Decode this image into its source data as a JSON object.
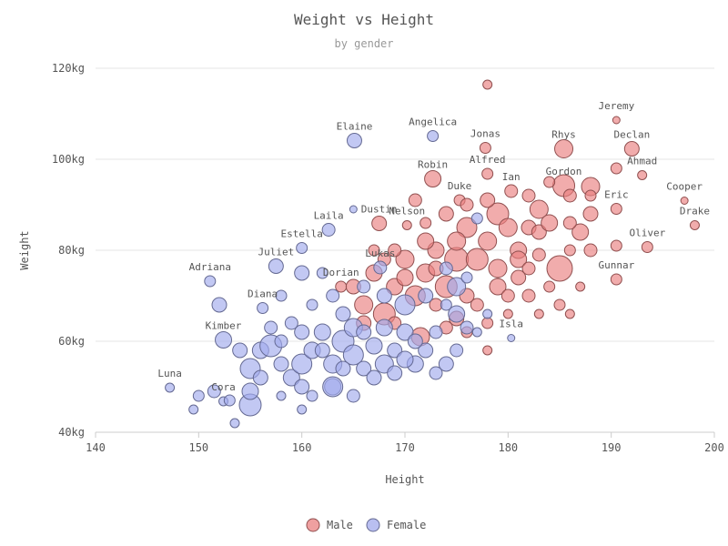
{
  "chart_data": {
    "type": "scatter",
    "title": "Weight vs Height",
    "subtitle": "by gender",
    "xlabel": "Height",
    "ylabel": "Weight",
    "xlim": [
      140,
      200
    ],
    "ylim": [
      40,
      120
    ],
    "x_ticks": [
      "140",
      "150",
      "160",
      "170",
      "180",
      "190",
      "200"
    ],
    "y_ticks": [
      "40kg",
      "60kg",
      "80kg",
      "100kg",
      "120kg"
    ],
    "grid": "horizontal",
    "legend_position": "bottom-center",
    "series": [
      {
        "name": "Male",
        "color": "#e98080",
        "labeled_points": [
          {
            "name": "Jeremy",
            "x": 190.5,
            "y": 108.6
          },
          {
            "name": "Declan",
            "x": 192.0,
            "y": 102.3
          },
          {
            "name": "Ahmad",
            "x": 193.0,
            "y": 96.5
          },
          {
            "name": "Rhys",
            "x": 185.4,
            "y": 102.3
          },
          {
            "name": "Jonas",
            "x": 177.8,
            "y": 102.5
          },
          {
            "name": "Gordon",
            "x": 185.4,
            "y": 94.2
          },
          {
            "name": "Alfred",
            "x": 178.0,
            "y": 96.8
          },
          {
            "name": "Robin",
            "x": 172.7,
            "y": 95.7
          },
          {
            "name": "Ian",
            "x": 180.3,
            "y": 93.0
          },
          {
            "name": "Duke",
            "x": 175.3,
            "y": 91.0
          },
          {
            "name": "Eric",
            "x": 190.5,
            "y": 89.1
          },
          {
            "name": "Cooper",
            "x": 197.1,
            "y": 90.9
          },
          {
            "name": "Drake",
            "x": 198.1,
            "y": 85.5
          },
          {
            "name": "Oliver",
            "x": 193.5,
            "y": 80.7
          },
          {
            "name": "Nelson",
            "x": 170.2,
            "y": 85.5
          },
          {
            "name": "Dustin",
            "x": 167.5,
            "y": 85.9
          },
          {
            "name": "Gunnar",
            "x": 190.5,
            "y": 73.6
          },
          {
            "name": "Dorian",
            "x": 163.8,
            "y": 72.0
          }
        ],
        "points": [
          {
            "x": 178.0,
            "y": 116.4,
            "r": 5
          },
          {
            "x": 190.5,
            "y": 108.6,
            "r": 4
          },
          {
            "x": 192.0,
            "y": 102.3,
            "r": 8
          },
          {
            "x": 193.0,
            "y": 96.5,
            "r": 5
          },
          {
            "x": 185.4,
            "y": 102.3,
            "r": 10
          },
          {
            "x": 177.8,
            "y": 102.5,
            "r": 6
          },
          {
            "x": 185.4,
            "y": 94.2,
            "r": 12
          },
          {
            "x": 178.0,
            "y": 96.8,
            "r": 6
          },
          {
            "x": 172.7,
            "y": 95.7,
            "r": 9
          },
          {
            "x": 180.3,
            "y": 93.0,
            "r": 7
          },
          {
            "x": 175.3,
            "y": 91.0,
            "r": 6
          },
          {
            "x": 190.5,
            "y": 89.1,
            "r": 6
          },
          {
            "x": 197.1,
            "y": 90.9,
            "r": 4
          },
          {
            "x": 198.1,
            "y": 85.5,
            "r": 5
          },
          {
            "x": 193.5,
            "y": 80.7,
            "r": 6
          },
          {
            "x": 170.2,
            "y": 85.5,
            "r": 5
          },
          {
            "x": 167.5,
            "y": 85.9,
            "r": 8
          },
          {
            "x": 190.5,
            "y": 73.6,
            "r": 6
          },
          {
            "x": 163.8,
            "y": 72.0,
            "r": 6
          },
          {
            "x": 188.0,
            "y": 94.0,
            "r": 10
          },
          {
            "x": 188.0,
            "y": 88.0,
            "r": 8
          },
          {
            "x": 187.0,
            "y": 84.0,
            "r": 9
          },
          {
            "x": 185.0,
            "y": 76.0,
            "r": 14
          },
          {
            "x": 183.0,
            "y": 89.0,
            "r": 10
          },
          {
            "x": 182.0,
            "y": 85.0,
            "r": 8
          },
          {
            "x": 181.0,
            "y": 80.0,
            "r": 9
          },
          {
            "x": 179.0,
            "y": 88.0,
            "r": 12
          },
          {
            "x": 178.0,
            "y": 82.0,
            "r": 10
          },
          {
            "x": 176.0,
            "y": 85.0,
            "r": 11
          },
          {
            "x": 175.0,
            "y": 78.0,
            "r": 13
          },
          {
            "x": 174.0,
            "y": 72.0,
            "r": 12
          },
          {
            "x": 173.0,
            "y": 80.0,
            "r": 9
          },
          {
            "x": 172.0,
            "y": 75.0,
            "r": 10
          },
          {
            "x": 171.0,
            "y": 70.0,
            "r": 11
          },
          {
            "x": 170.0,
            "y": 78.0,
            "r": 10
          },
          {
            "x": 169.0,
            "y": 72.0,
            "r": 9
          },
          {
            "x": 168.0,
            "y": 66.0,
            "r": 12
          },
          {
            "x": 167.0,
            "y": 75.0,
            "r": 9
          },
          {
            "x": 166.0,
            "y": 68.0,
            "r": 10
          },
          {
            "x": 165.0,
            "y": 72.0,
            "r": 8
          },
          {
            "x": 171.5,
            "y": 61.0,
            "r": 10
          },
          {
            "x": 175.0,
            "y": 65.0,
            "r": 8
          },
          {
            "x": 177.0,
            "y": 68.0,
            "r": 7
          },
          {
            "x": 179.0,
            "y": 72.0,
            "r": 9
          },
          {
            "x": 181.0,
            "y": 74.0,
            "r": 8
          },
          {
            "x": 183.0,
            "y": 79.0,
            "r": 7
          },
          {
            "x": 186.0,
            "y": 80.0,
            "r": 6
          },
          {
            "x": 188.0,
            "y": 80.0,
            "r": 7
          },
          {
            "x": 190.5,
            "y": 81.0,
            "r": 6
          },
          {
            "x": 185.0,
            "y": 68.0,
            "r": 6
          },
          {
            "x": 186.0,
            "y": 66.0,
            "r": 5
          },
          {
            "x": 183.0,
            "y": 66.0,
            "r": 5
          },
          {
            "x": 178.0,
            "y": 64.0,
            "r": 6
          },
          {
            "x": 178.0,
            "y": 58.0,
            "r": 5
          },
          {
            "x": 176.0,
            "y": 62.0,
            "r": 6
          },
          {
            "x": 174.0,
            "y": 63.0,
            "r": 7
          },
          {
            "x": 180.0,
            "y": 66.0,
            "r": 5
          },
          {
            "x": 182.0,
            "y": 70.0,
            "r": 7
          },
          {
            "x": 184.0,
            "y": 72.0,
            "r": 6
          },
          {
            "x": 187.0,
            "y": 72.0,
            "r": 5
          },
          {
            "x": 176.0,
            "y": 90.0,
            "r": 7
          },
          {
            "x": 174.0,
            "y": 88.0,
            "r": 8
          },
          {
            "x": 172.0,
            "y": 86.0,
            "r": 6
          },
          {
            "x": 171.0,
            "y": 91.0,
            "r": 7
          },
          {
            "x": 169.0,
            "y": 80.0,
            "r": 7
          },
          {
            "x": 167.0,
            "y": 80.0,
            "r": 6
          },
          {
            "x": 182.0,
            "y": 92.0,
            "r": 7
          },
          {
            "x": 184.0,
            "y": 95.0,
            "r": 6
          },
          {
            "x": 186.0,
            "y": 92.0,
            "r": 7
          },
          {
            "x": 188.0,
            "y": 92.0,
            "r": 6
          },
          {
            "x": 190.5,
            "y": 98.0,
            "r": 6
          },
          {
            "x": 180.0,
            "y": 85.0,
            "r": 10
          },
          {
            "x": 177.0,
            "y": 78.0,
            "r": 12
          },
          {
            "x": 175.0,
            "y": 82.0,
            "r": 10
          },
          {
            "x": 173.0,
            "y": 76.0,
            "r": 8
          },
          {
            "x": 179.0,
            "y": 76.0,
            "r": 10
          },
          {
            "x": 181.0,
            "y": 78.0,
            "r": 9
          },
          {
            "x": 183.0,
            "y": 84.0,
            "r": 8
          },
          {
            "x": 178.0,
            "y": 91.0,
            "r": 8
          },
          {
            "x": 172.0,
            "y": 82.0,
            "r": 9
          },
          {
            "x": 170.0,
            "y": 74.0,
            "r": 9
          },
          {
            "x": 168.0,
            "y": 78.0,
            "r": 7
          },
          {
            "x": 166.0,
            "y": 64.0,
            "r": 8
          },
          {
            "x": 169.0,
            "y": 64.0,
            "r": 7
          },
          {
            "x": 173.0,
            "y": 68.0,
            "r": 7
          },
          {
            "x": 176.0,
            "y": 70.0,
            "r": 8
          },
          {
            "x": 180.0,
            "y": 70.0,
            "r": 7
          },
          {
            "x": 182.0,
            "y": 76.0,
            "r": 7
          },
          {
            "x": 184.0,
            "y": 86.0,
            "r": 9
          },
          {
            "x": 186.0,
            "y": 86.0,
            "r": 7
          }
        ]
      },
      {
        "name": "Female",
        "color": "#a2aaec",
        "labeled_points": [
          {
            "name": "Elaine",
            "x": 165.1,
            "y": 104.1
          },
          {
            "name": "Angelica",
            "x": 172.7,
            "y": 105.1
          },
          {
            "name": "Laila",
            "x": 162.6,
            "y": 84.5
          },
          {
            "name": "Estella",
            "x": 160.0,
            "y": 80.5
          },
          {
            "name": "Juliet",
            "x": 157.5,
            "y": 76.5
          },
          {
            "name": "Adriana",
            "x": 151.1,
            "y": 73.2
          },
          {
            "name": "Lukas",
            "x": 167.6,
            "y": 76.2
          },
          {
            "name": "Diana",
            "x": 156.2,
            "y": 67.3
          },
          {
            "name": "Kimber",
            "x": 152.4,
            "y": 60.3
          },
          {
            "name": "Isla",
            "x": 180.3,
            "y": 60.7
          },
          {
            "name": "Luna",
            "x": 147.2,
            "y": 49.8
          },
          {
            "name": "Cora",
            "x": 152.4,
            "y": 46.8
          }
        ],
        "points": [
          {
            "x": 165.1,
            "y": 104.1,
            "r": 8
          },
          {
            "x": 172.7,
            "y": 105.1,
            "r": 6
          },
          {
            "x": 162.6,
            "y": 84.5,
            "r": 7
          },
          {
            "x": 160.0,
            "y": 80.5,
            "r": 6
          },
          {
            "x": 157.5,
            "y": 76.5,
            "r": 8
          },
          {
            "x": 151.1,
            "y": 73.2,
            "r": 6
          },
          {
            "x": 167.6,
            "y": 76.2,
            "r": 7
          },
          {
            "x": 156.2,
            "y": 67.3,
            "r": 6
          },
          {
            "x": 152.4,
            "y": 60.3,
            "r": 9
          },
          {
            "x": 180.3,
            "y": 60.7,
            "r": 4
          },
          {
            "x": 147.2,
            "y": 49.8,
            "r": 5
          },
          {
            "x": 152.4,
            "y": 46.8,
            "r": 5
          },
          {
            "x": 150.0,
            "y": 48.0,
            "r": 6
          },
          {
            "x": 151.5,
            "y": 49.0,
            "r": 7
          },
          {
            "x": 153.5,
            "y": 42.0,
            "r": 5
          },
          {
            "x": 149.5,
            "y": 45.0,
            "r": 5
          },
          {
            "x": 155.0,
            "y": 46.0,
            "r": 12
          },
          {
            "x": 155.0,
            "y": 49.0,
            "r": 9
          },
          {
            "x": 155.0,
            "y": 54.0,
            "r": 11
          },
          {
            "x": 156.0,
            "y": 58.0,
            "r": 9
          },
          {
            "x": 157.0,
            "y": 59.0,
            "r": 12
          },
          {
            "x": 158.0,
            "y": 55.0,
            "r": 8
          },
          {
            "x": 159.0,
            "y": 52.0,
            "r": 9
          },
          {
            "x": 160.0,
            "y": 55.0,
            "r": 11
          },
          {
            "x": 160.0,
            "y": 50.0,
            "r": 8
          },
          {
            "x": 161.0,
            "y": 58.0,
            "r": 9
          },
          {
            "x": 162.0,
            "y": 62.0,
            "r": 9
          },
          {
            "x": 163.0,
            "y": 55.0,
            "r": 10
          },
          {
            "x": 163.0,
            "y": 50.0,
            "r": 9
          },
          {
            "x": 164.0,
            "y": 60.0,
            "r": 12
          },
          {
            "x": 165.0,
            "y": 63.0,
            "r": 10
          },
          {
            "x": 165.0,
            "y": 57.0,
            "r": 11
          },
          {
            "x": 166.0,
            "y": 54.0,
            "r": 8
          },
          {
            "x": 167.0,
            "y": 59.0,
            "r": 9
          },
          {
            "x": 168.0,
            "y": 55.0,
            "r": 10
          },
          {
            "x": 169.0,
            "y": 58.0,
            "r": 8
          },
          {
            "x": 170.0,
            "y": 62.0,
            "r": 9
          },
          {
            "x": 170.0,
            "y": 68.0,
            "r": 11
          },
          {
            "x": 171.0,
            "y": 55.0,
            "r": 9
          },
          {
            "x": 172.0,
            "y": 58.0,
            "r": 8
          },
          {
            "x": 173.0,
            "y": 62.0,
            "r": 7
          },
          {
            "x": 174.0,
            "y": 55.0,
            "r": 8
          },
          {
            "x": 175.0,
            "y": 66.0,
            "r": 9
          },
          {
            "x": 176.0,
            "y": 63.0,
            "r": 7
          },
          {
            "x": 175.0,
            "y": 72.0,
            "r": 10
          },
          {
            "x": 174.0,
            "y": 76.0,
            "r": 7
          },
          {
            "x": 172.0,
            "y": 70.0,
            "r": 8
          },
          {
            "x": 168.0,
            "y": 70.0,
            "r": 8
          },
          {
            "x": 166.0,
            "y": 72.0,
            "r": 7
          },
          {
            "x": 163.0,
            "y": 70.0,
            "r": 7
          },
          {
            "x": 161.0,
            "y": 68.0,
            "r": 6
          },
          {
            "x": 160.0,
            "y": 75.0,
            "r": 8
          },
          {
            "x": 162.0,
            "y": 75.0,
            "r": 6
          },
          {
            "x": 158.0,
            "y": 70.0,
            "r": 6
          },
          {
            "x": 159.0,
            "y": 64.0,
            "r": 7
          },
          {
            "x": 157.0,
            "y": 63.0,
            "r": 7
          },
          {
            "x": 161.0,
            "y": 48.0,
            "r": 6
          },
          {
            "x": 160.0,
            "y": 45.0,
            "r": 5
          },
          {
            "x": 158.0,
            "y": 48.0,
            "r": 5
          },
          {
            "x": 163.0,
            "y": 50.0,
            "r": 11
          },
          {
            "x": 165.0,
            "y": 48.0,
            "r": 7
          },
          {
            "x": 167.0,
            "y": 52.0,
            "r": 8
          },
          {
            "x": 169.0,
            "y": 53.0,
            "r": 8
          },
          {
            "x": 171.0,
            "y": 60.0,
            "r": 8
          },
          {
            "x": 173.0,
            "y": 53.0,
            "r": 7
          },
          {
            "x": 175.0,
            "y": 58.0,
            "r": 7
          },
          {
            "x": 177.0,
            "y": 62.0,
            "r": 5
          },
          {
            "x": 178.0,
            "y": 66.0,
            "r": 5
          },
          {
            "x": 152.0,
            "y": 68.0,
            "r": 8
          },
          {
            "x": 154.0,
            "y": 58.0,
            "r": 8
          },
          {
            "x": 156.0,
            "y": 52.0,
            "r": 8
          },
          {
            "x": 153.0,
            "y": 47.0,
            "r": 6
          },
          {
            "x": 164.0,
            "y": 66.0,
            "r": 8
          },
          {
            "x": 166.0,
            "y": 62.0,
            "r": 8
          },
          {
            "x": 168.0,
            "y": 63.0,
            "r": 9
          },
          {
            "x": 170.0,
            "y": 56.0,
            "r": 9
          },
          {
            "x": 162.0,
            "y": 58.0,
            "r": 8
          },
          {
            "x": 164.0,
            "y": 54.0,
            "r": 8
          },
          {
            "x": 160.0,
            "y": 62.0,
            "r": 8
          },
          {
            "x": 158.0,
            "y": 60.0,
            "r": 7
          },
          {
            "x": 174.0,
            "y": 68.0,
            "r": 6
          },
          {
            "x": 176.0,
            "y": 74.0,
            "r": 6
          },
          {
            "x": 177.0,
            "y": 87.0,
            "r": 6
          },
          {
            "x": 165.0,
            "y": 89.0,
            "r": 4
          }
        ]
      }
    ]
  }
}
